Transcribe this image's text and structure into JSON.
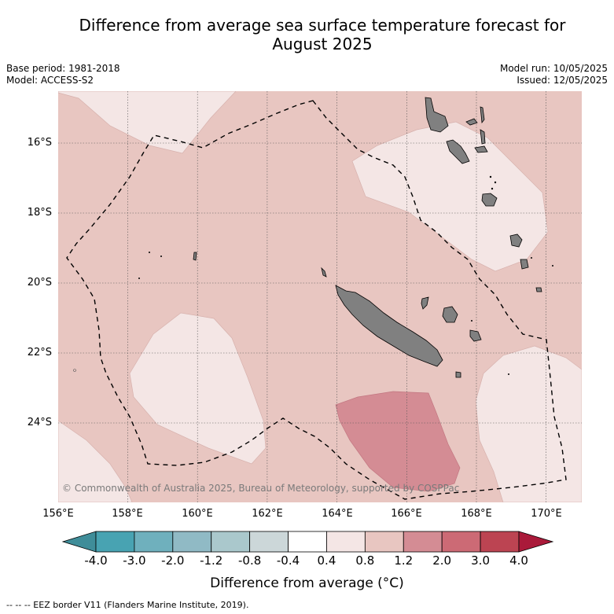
{
  "title_line1": "Difference from average sea surface temperature forecast for",
  "title_line2": "August 2025",
  "base_period": "Base period: 1981-2018",
  "model": "Model: ACCESS-S2",
  "model_run": "Model run: 10/05/2025",
  "issued": "Issued: 12/05/2025",
  "latitude_labels": [
    "16°S",
    "18°S",
    "20°S",
    "22°S",
    "24°S"
  ],
  "longitude_labels": [
    "156°E",
    "158°E",
    "160°E",
    "162°E",
    "164°E",
    "166°E",
    "168°E",
    "170°E"
  ],
  "copyright": "© Commonwealth of Australia 2025, Bureau of Meteorology, supported by COSPPac",
  "colorbar": {
    "ticks": [
      "-4.0",
      "-3.0",
      "-2.0",
      "-1.2",
      "-0.8",
      "-0.4",
      "0.4",
      "0.8",
      "1.2",
      "2.0",
      "3.0",
      "4.0"
    ],
    "colors": [
      "#3f8d99",
      "#48a3b2",
      "#6fb0bd",
      "#90bac5",
      "#aac8cc",
      "#ccd7d9",
      "#ffffff",
      "#f4e6e5",
      "#e8c6c1",
      "#d48c94",
      "#cc6a75",
      "#bc4452",
      "#aa1a3a"
    ],
    "label": "Difference from average (°C)"
  },
  "footnote": "--  --  -- EEZ border V11 (Flanders Marine Institute, 2019).",
  "legend_colors": {
    "above_0_4": "#f4e6e5",
    "above_0_8": "#e8c6c1",
    "above_1_2": "#d48c94",
    "land": "#808080"
  }
}
